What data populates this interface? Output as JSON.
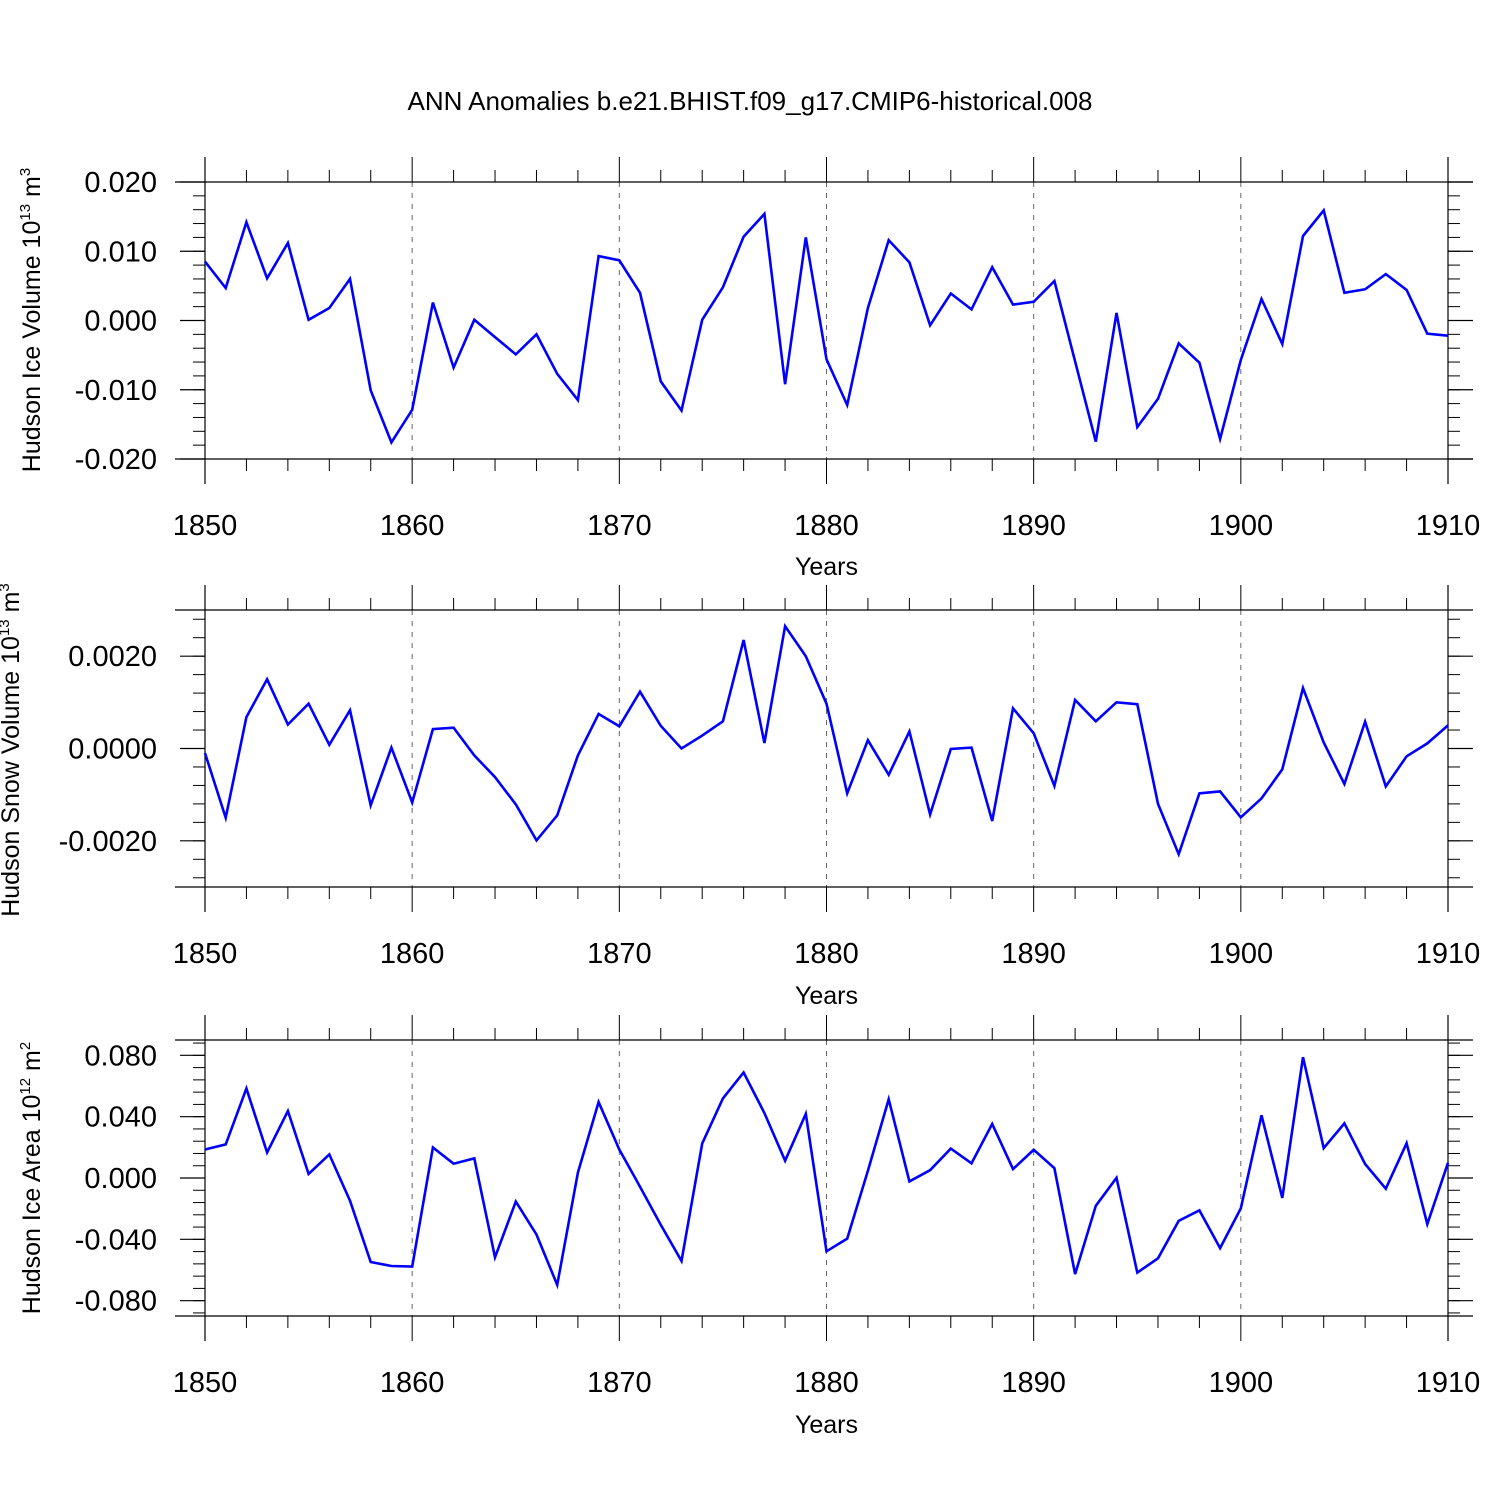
{
  "title": "ANN Anomalies b.e21.BHIST.f09_g17.CMIP6-historical.008",
  "line_color": "#0000ff",
  "chart_data": [
    {
      "type": "line",
      "name": "ice-volume",
      "ylabel": {
        "text": "Hudson Ice Volume 10",
        "exp": "13",
        "unit": " m",
        "unit_exp": "3"
      },
      "xlabel": "Years",
      "xlim": [
        1850,
        1910
      ],
      "ylim": [
        -0.02,
        0.02
      ],
      "xticks": [
        1850,
        1860,
        1870,
        1880,
        1890,
        1900,
        1910
      ],
      "xtick_labels": [
        "1850",
        "1860",
        "1870",
        "1880",
        "1890",
        "1900",
        "1910"
      ],
      "yticks": [
        -0.02,
        -0.01,
        0.0,
        0.01,
        0.02
      ],
      "ytick_labels": [
        "-0.020",
        "-0.010",
        "0.000",
        "0.010",
        "0.020"
      ],
      "x": [
        1850,
        1851,
        1852,
        1853,
        1854,
        1855,
        1856,
        1857,
        1858,
        1859,
        1860,
        1861,
        1862,
        1863,
        1864,
        1865,
        1866,
        1867,
        1868,
        1869,
        1870,
        1871,
        1872,
        1873,
        1874,
        1875,
        1876,
        1877,
        1878,
        1879,
        1880,
        1881,
        1882,
        1883,
        1884,
        1885,
        1886,
        1887,
        1888,
        1889,
        1890,
        1891,
        1892,
        1893,
        1894,
        1895,
        1896,
        1897,
        1898,
        1899,
        1900,
        1901,
        1902,
        1903,
        1904,
        1905,
        1906,
        1907,
        1908,
        1909,
        1910
      ],
      "values": [
        0.0085,
        0.0047,
        0.0142,
        0.0061,
        0.0112,
        0.0001,
        0.0018,
        0.006,
        -0.0101,
        -0.0176,
        -0.0129,
        0.0026,
        -0.0068,
        0.0001,
        -0.0024,
        -0.0049,
        -0.002,
        -0.0077,
        -0.0115,
        0.0093,
        0.0087,
        0.004,
        -0.0088,
        -0.013,
        0.0001,
        0.0048,
        0.0121,
        0.0154,
        -0.0092,
        0.012,
        -0.0056,
        -0.0122,
        0.0018,
        0.0116,
        0.0084,
        -0.0007,
        0.0039,
        0.0016,
        0.0077,
        0.0023,
        0.0027,
        0.0057,
        -0.0059,
        -0.0175,
        0.0011,
        -0.0154,
        -0.0113,
        -0.0033,
        -0.0061,
        -0.0171,
        -0.0057,
        0.0031,
        -0.0034,
        0.0122,
        0.0159,
        0.004,
        0.0045,
        0.0067,
        0.0044,
        -0.0019,
        -0.0022
      ]
    },
    {
      "type": "line",
      "name": "snow-volume",
      "ylabel": {
        "text": "Hudson Snow Volume 10",
        "exp": "13",
        "unit": " m",
        "unit_exp": "3"
      },
      "xlabel": "Years",
      "xlim": [
        1850,
        1910
      ],
      "ylim": [
        -0.003,
        0.003
      ],
      "xticks": [
        1850,
        1860,
        1870,
        1880,
        1890,
        1900,
        1910
      ],
      "xtick_labels": [
        "1850",
        "1860",
        "1870",
        "1880",
        "1890",
        "1900",
        "1910"
      ],
      "yticks": [
        -0.002,
        0.0,
        0.002
      ],
      "ytick_labels": [
        "-0.0020",
        "0.0000",
        "0.0020"
      ],
      "x": [
        1850,
        1851,
        1852,
        1853,
        1854,
        1855,
        1856,
        1857,
        1858,
        1859,
        1860,
        1861,
        1862,
        1863,
        1864,
        1865,
        1866,
        1867,
        1868,
        1869,
        1870,
        1871,
        1872,
        1873,
        1874,
        1875,
        1876,
        1877,
        1878,
        1879,
        1880,
        1881,
        1882,
        1883,
        1884,
        1885,
        1886,
        1887,
        1888,
        1889,
        1890,
        1891,
        1892,
        1893,
        1894,
        1895,
        1896,
        1897,
        1898,
        1899,
        1900,
        1901,
        1902,
        1903,
        1904,
        1905,
        1906,
        1907,
        1908,
        1909,
        1910
      ],
      "values": [
        -0.0001,
        -0.0015,
        0.00068,
        0.0015,
        0.00052,
        0.00097,
        8e-05,
        0.00083,
        -0.00123,
        2e-05,
        -0.00117,
        0.00042,
        0.00045,
        -0.00015,
        -0.00062,
        -0.00121,
        -0.00199,
        -0.00145,
        -0.00015,
        0.00075,
        0.00048,
        0.00123,
        0.00049,
        0.0,
        0.00028,
        0.00059,
        0.00235,
        0.00012,
        0.00265,
        0.002,
        0.00097,
        -0.00097,
        0.00018,
        -0.00057,
        0.00037,
        -0.00143,
        -1e-05,
        2e-05,
        -0.00157,
        0.00087,
        0.00033,
        -0.00081,
        0.00105,
        0.00059,
        0.001,
        0.00096,
        -0.0012,
        -0.00229,
        -0.00097,
        -0.00093,
        -0.00149,
        -0.00108,
        -0.00045,
        0.00131,
        0.00013,
        -0.00077,
        0.00058,
        -0.00082,
        -0.00017,
        0.00011,
        0.0005
      ]
    },
    {
      "type": "line",
      "name": "ice-area",
      "ylabel": {
        "text": "Hudson Ice Area 10",
        "exp": "12",
        "unit": " m",
        "unit_exp": "2"
      },
      "xlabel": "Years",
      "xlim": [
        1850,
        1910
      ],
      "ylim": [
        -0.09,
        0.09
      ],
      "xticks": [
        1850,
        1860,
        1870,
        1880,
        1890,
        1900,
        1910
      ],
      "xtick_labels": [
        "1850",
        "1860",
        "1870",
        "1880",
        "1890",
        "1900",
        "1910"
      ],
      "yticks": [
        -0.08,
        -0.04,
        0.0,
        0.04,
        0.08
      ],
      "ytick_labels": [
        "-0.080",
        "-0.040",
        "0.000",
        "0.040",
        "0.080"
      ],
      "x": [
        1850,
        1851,
        1852,
        1853,
        1854,
        1855,
        1856,
        1857,
        1858,
        1859,
        1860,
        1861,
        1862,
        1863,
        1864,
        1865,
        1866,
        1867,
        1868,
        1869,
        1870,
        1871,
        1872,
        1873,
        1874,
        1875,
        1876,
        1877,
        1878,
        1879,
        1880,
        1881,
        1882,
        1883,
        1884,
        1885,
        1886,
        1887,
        1888,
        1889,
        1890,
        1891,
        1892,
        1893,
        1894,
        1895,
        1896,
        1897,
        1898,
        1899,
        1900,
        1901,
        1902,
        1903,
        1904,
        1905,
        1906,
        1907,
        1908,
        1909,
        1910
      ],
      "values": [
        0.0186,
        0.0219,
        0.0584,
        0.0166,
        0.0437,
        0.0027,
        0.0154,
        -0.0148,
        -0.0548,
        -0.0574,
        -0.0578,
        0.0199,
        0.0093,
        0.0128,
        -0.0517,
        -0.0153,
        -0.0369,
        -0.0697,
        0.0035,
        0.0495,
        0.0186,
        -0.0057,
        -0.0306,
        -0.0541,
        0.0225,
        0.0519,
        0.0688,
        0.0424,
        0.0113,
        0.0418,
        -0.0478,
        -0.0395,
        0.0047,
        0.0514,
        -0.0022,
        0.0051,
        0.0192,
        0.0096,
        0.0353,
        0.0058,
        0.0184,
        0.0064,
        -0.0627,
        -0.0181,
        0.0001,
        -0.0617,
        -0.0524,
        -0.028,
        -0.0211,
        -0.0457,
        -0.0198,
        0.0409,
        -0.013,
        0.0788,
        0.0195,
        0.0356,
        0.0091,
        -0.007,
        0.0227,
        -0.0301,
        0.0099
      ]
    }
  ]
}
